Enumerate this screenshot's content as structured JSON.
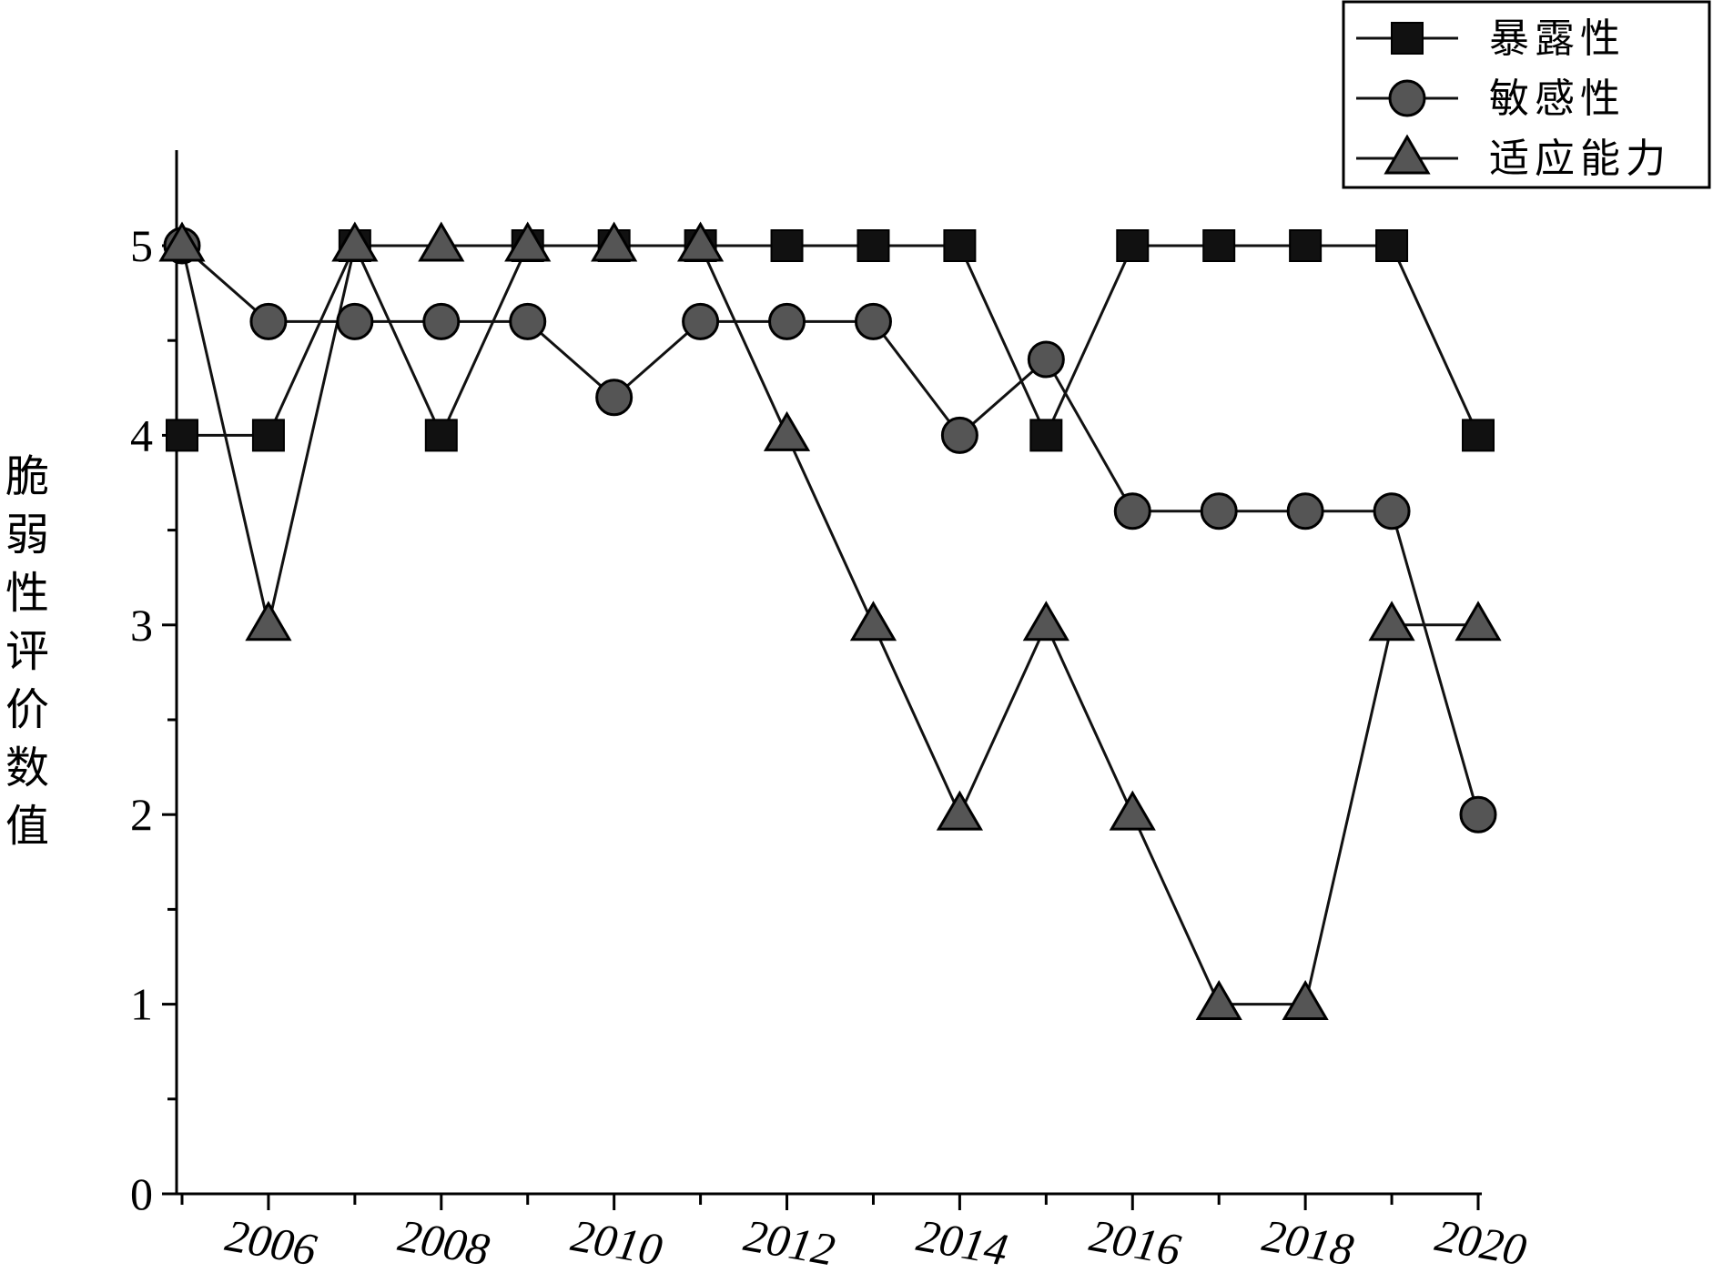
{
  "chart_data": {
    "type": "line",
    "title": "",
    "xlabel": "",
    "ylabel": "脆弱性评价数值",
    "x": [
      2005,
      2006,
      2007,
      2008,
      2009,
      2010,
      2011,
      2012,
      2013,
      2014,
      2015,
      2016,
      2017,
      2018,
      2019,
      2020
    ],
    "x_tick_labels": [
      "2006",
      "2008",
      "2010",
      "2012",
      "2014",
      "2016",
      "2018",
      "2020"
    ],
    "x_tick_values": [
      2006,
      2008,
      2010,
      2012,
      2014,
      2016,
      2018,
      2020
    ],
    "xlim": [
      2005,
      2020
    ],
    "y_tick_labels": [
      "0",
      "1",
      "2",
      "3",
      "4",
      "5"
    ],
    "y_tick_values": [
      0,
      1,
      2,
      3,
      4,
      5
    ],
    "ylim": [
      0,
      5.5
    ],
    "grid": false,
    "legend_position": "top-right",
    "series": [
      {
        "name": "暴露性",
        "marker": "square",
        "color": "#111111",
        "values": [
          4,
          4,
          5,
          4,
          5,
          5,
          5,
          5,
          5,
          5,
          4,
          5,
          5,
          5,
          5,
          4
        ]
      },
      {
        "name": "敏感性",
        "marker": "circle",
        "color": "#555555",
        "values": [
          5,
          4.6,
          4.6,
          4.6,
          4.6,
          4.2,
          4.6,
          4.6,
          4.6,
          4,
          4.4,
          3.6,
          3.6,
          3.6,
          3.6,
          2
        ]
      },
      {
        "name": "适应能力",
        "marker": "triangle",
        "color": "#555555",
        "values": [
          5,
          3,
          5,
          5,
          5,
          5,
          5,
          4,
          3,
          2,
          3,
          2,
          1,
          1,
          3,
          3
        ]
      }
    ]
  }
}
